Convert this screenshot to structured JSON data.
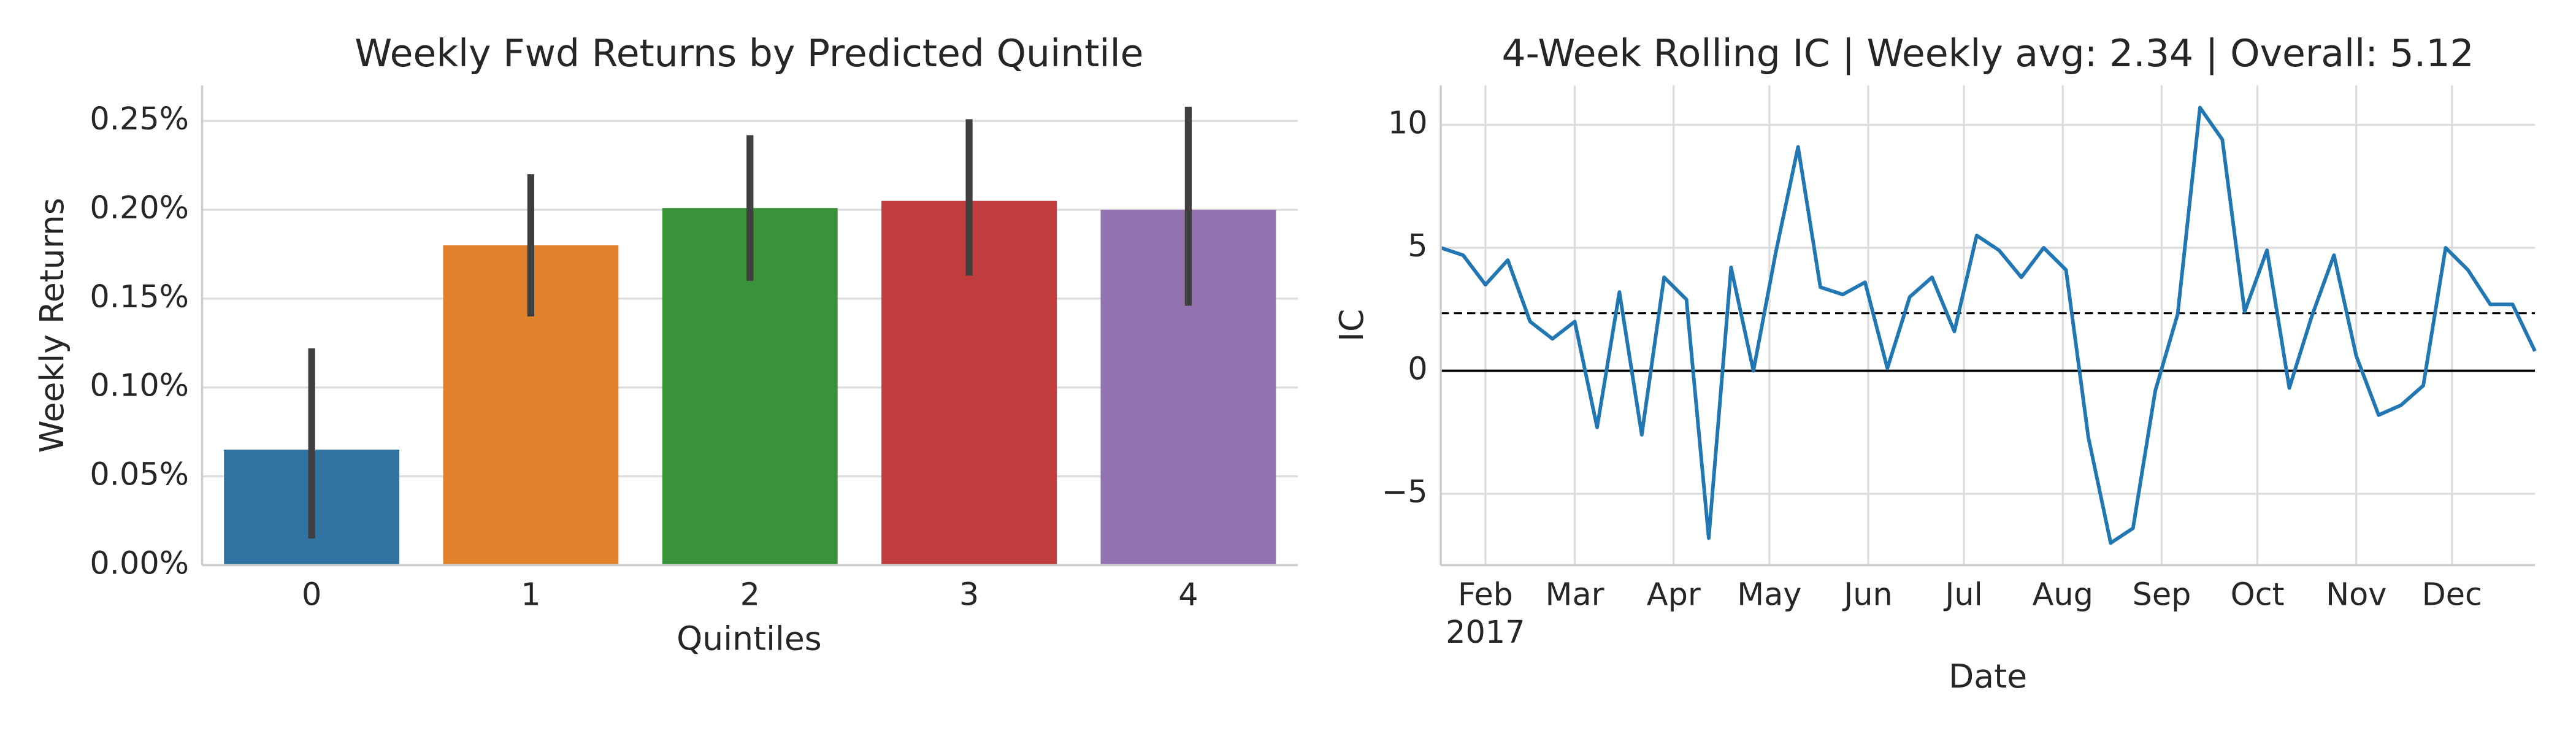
{
  "chart_data": [
    {
      "type": "bar",
      "title": "Weekly Fwd Returns by Predicted Quintile",
      "xlabel": "Quintiles",
      "ylabel": "Weekly Returns",
      "categories": [
        "0",
        "1",
        "2",
        "3",
        "4"
      ],
      "values": [
        0.065,
        0.18,
        0.201,
        0.205,
        0.2
      ],
      "ci_low": [
        0.015,
        0.14,
        0.16,
        0.163,
        0.146
      ],
      "ci_high": [
        0.122,
        0.22,
        0.242,
        0.251,
        0.258
      ],
      "colors": [
        "#3274a1",
        "#e1812c",
        "#3a923a",
        "#c03d3e",
        "#9372b2"
      ],
      "error_color": "#3f3f3f",
      "ylim": [
        0,
        0.27
      ],
      "yticks": [
        {
          "value": 0,
          "label": "0.00%"
        },
        {
          "value": 0.05,
          "label": "0.05%"
        },
        {
          "value": 0.1,
          "label": "0.10%"
        },
        {
          "value": 0.15,
          "label": "0.15%"
        },
        {
          "value": 0.2,
          "label": "0.20%"
        },
        {
          "value": 0.25,
          "label": "0.25%"
        }
      ],
      "grid": true
    },
    {
      "type": "line",
      "title": "4-Week Rolling IC | Weekly avg: 2.34 | Overall: 5.12",
      "xlabel": "Date",
      "ylabel": "IC",
      "x": [
        "2017-01-18",
        "2017-01-25",
        "2017-02-01",
        "2017-02-08",
        "2017-02-15",
        "2017-02-22",
        "2017-03-01",
        "2017-03-08",
        "2017-03-15",
        "2017-03-22",
        "2017-03-29",
        "2017-04-05",
        "2017-04-12",
        "2017-04-19",
        "2017-04-26",
        "2017-05-03",
        "2017-05-10",
        "2017-05-17",
        "2017-05-24",
        "2017-05-31",
        "2017-06-07",
        "2017-06-14",
        "2017-06-21",
        "2017-06-28",
        "2017-07-05",
        "2017-07-12",
        "2017-07-19",
        "2017-07-26",
        "2017-08-02",
        "2017-08-09",
        "2017-08-16",
        "2017-08-23",
        "2017-08-30",
        "2017-09-06",
        "2017-09-13",
        "2017-09-20",
        "2017-09-27",
        "2017-10-04",
        "2017-10-11",
        "2017-10-18",
        "2017-10-25",
        "2017-11-01",
        "2017-11-08",
        "2017-11-15",
        "2017-11-22",
        "2017-11-29",
        "2017-12-06",
        "2017-12-13",
        "2017-12-20",
        "2017-12-27"
      ],
      "series": [
        {
          "color": "#2077b4",
          "values": [
            5.0,
            4.7,
            3.5,
            4.5,
            2.0,
            1.3,
            2.0,
            -2.3,
            3.2,
            -2.6,
            3.8,
            2.9,
            -6.8,
            4.2,
            0.0,
            4.8,
            9.1,
            3.4,
            3.1,
            3.6,
            0.1,
            3.0,
            3.8,
            1.6,
            5.5,
            4.9,
            3.8,
            5.0,
            4.1,
            -2.7,
            -7.0,
            -6.4,
            -0.8,
            2.3,
            10.7,
            9.4,
            2.4,
            4.9,
            -0.7,
            2.2,
            4.7,
            0.6,
            -1.8,
            -1.4,
            -0.6,
            5.0,
            4.1,
            2.7,
            2.7,
            0.8
          ]
        }
      ],
      "mean_line": 2.34,
      "xlim": [
        "2017-01-18",
        "2017-12-27"
      ],
      "xticks": [
        {
          "value": "2017-02-01",
          "label": "Feb"
        },
        {
          "value": "2017-03-01",
          "label": "Mar"
        },
        {
          "value": "2017-04-01",
          "label": "Apr"
        },
        {
          "value": "2017-05-01",
          "label": "May"
        },
        {
          "value": "2017-06-01",
          "label": "Jun"
        },
        {
          "value": "2017-07-01",
          "label": "Jul"
        },
        {
          "value": "2017-08-01",
          "label": "Aug"
        },
        {
          "value": "2017-09-01",
          "label": "Sep"
        },
        {
          "value": "2017-10-01",
          "label": "Oct"
        },
        {
          "value": "2017-11-01",
          "label": "Nov"
        },
        {
          "value": "2017-12-01",
          "label": "Dec"
        }
      ],
      "xtick_year": "2017",
      "ylim": [
        -7.9,
        11.6
      ],
      "yticks": [
        {
          "value": -5,
          "label": "−5"
        },
        0,
        5,
        10
      ],
      "grid": true
    }
  ]
}
